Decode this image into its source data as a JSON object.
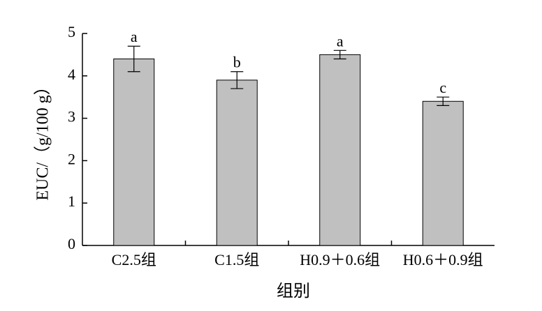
{
  "chart_data": {
    "type": "bar",
    "categories": [
      "C2.5组",
      "C1.5组",
      "H0.9＋0.6组",
      "H0.6＋0.9组"
    ],
    "values": [
      4.4,
      3.9,
      4.5,
      3.4
    ],
    "errors": [
      0.3,
      0.2,
      0.1,
      0.1
    ],
    "significance": [
      "a",
      "b",
      "a",
      "c"
    ],
    "xlabel": "组别",
    "ylabel": "EUC/（g/100 g）",
    "ylim": [
      0,
      5
    ],
    "yticks": [
      0,
      1,
      2,
      3,
      4,
      5
    ],
    "grid": false,
    "colors": {
      "bar": "#c0c0c0",
      "stroke": "#000000"
    }
  }
}
